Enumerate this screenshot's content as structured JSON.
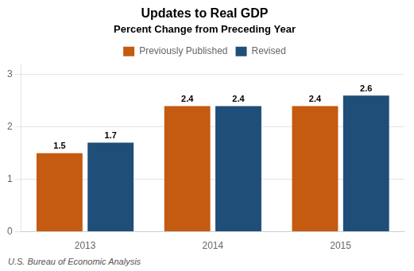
{
  "chart_data": {
    "type": "bar",
    "title": "Updates to Real GDP",
    "subtitle": "Percent Change from Preceding Year",
    "categories": [
      "2013",
      "2014",
      "2015"
    ],
    "series": [
      {
        "name": "Previously Published",
        "color": "#C55A11",
        "values": [
          1.5,
          2.4,
          2.4
        ]
      },
      {
        "name": "Revised",
        "color": "#1F4E79",
        "values": [
          1.7,
          2.4,
          2.6
        ]
      }
    ],
    "ylim": [
      0,
      3.2
    ],
    "yticks": [
      0,
      1,
      2,
      3
    ],
    "grid": true,
    "legend": "top",
    "data_labels": true,
    "annotations": [
      "U.S. Bureau of Economic Analysis"
    ]
  }
}
